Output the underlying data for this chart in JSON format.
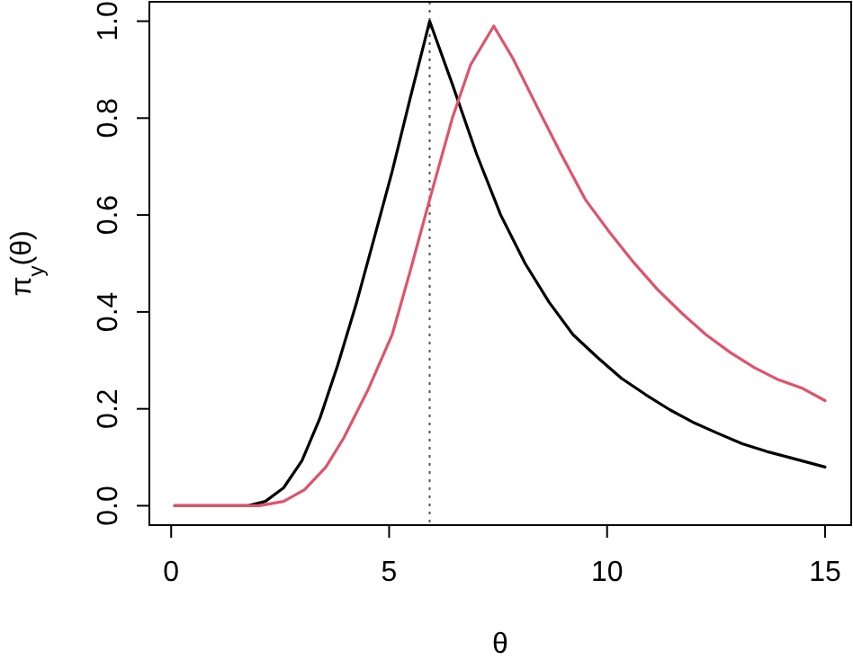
{
  "chart_data": {
    "type": "line",
    "xlabel": "θ",
    "ylabel": "π$_{y}$(θ)",
    "xlim": [
      -0.5,
      15.6
    ],
    "ylim": [
      -0.04,
      1.04
    ],
    "xticks": [
      0,
      5,
      10,
      15
    ],
    "yticks": [
      {
        "value": 0,
        "label": "0.0"
      },
      {
        "value": 0.2,
        "label": "0.2"
      },
      {
        "value": 0.4,
        "label": "0.4"
      },
      {
        "value": 0.6,
        "label": "0.6"
      },
      {
        "value": 0.8,
        "label": "0.8"
      },
      {
        "value": 1,
        "label": "1.0"
      }
    ],
    "grid": false,
    "marker": "none",
    "line_style": "solid",
    "ref_lines": [
      {
        "axis": "x",
        "value": 5.93,
        "line_style": "dotted",
        "color": "#555555"
      }
    ],
    "series": [
      {
        "color": "#000000",
        "x": [
          0.08,
          1.75,
          2.16,
          2.58,
          3.0,
          3.41,
          3.82,
          4.24,
          4.65,
          5.07,
          5.48,
          5.93,
          6.45,
          7.01,
          7.56,
          8.12,
          8.67,
          9.22,
          9.78,
          10.33,
          10.89,
          11.44,
          12.0,
          12.55,
          13.1,
          13.66,
          14.21,
          15.0
        ],
        "values": [
          0,
          0,
          0.009,
          0.037,
          0.093,
          0.18,
          0.29,
          0.415,
          0.55,
          0.69,
          0.84,
          1.0,
          0.87,
          0.725,
          0.6,
          0.5,
          0.42,
          0.353,
          0.306,
          0.263,
          0.229,
          0.198,
          0.171,
          0.149,
          0.128,
          0.112,
          0.099,
          0.08
        ]
      },
      {
        "color": "#df536b",
        "x": [
          0.08,
          2.02,
          2.58,
          3.06,
          3.55,
          3.96,
          4.52,
          5.07,
          5.48,
          5.93,
          6.45,
          6.87,
          7.4,
          7.84,
          8.39,
          8.95,
          9.5,
          10.06,
          10.61,
          11.16,
          11.72,
          12.27,
          12.83,
          13.38,
          13.93,
          14.49,
          15.0
        ],
        "values": [
          0,
          0,
          0.009,
          0.033,
          0.08,
          0.14,
          0.24,
          0.353,
          0.483,
          0.632,
          0.8,
          0.91,
          0.99,
          0.923,
          0.824,
          0.725,
          0.632,
          0.564,
          0.502,
          0.446,
          0.397,
          0.353,
          0.316,
          0.285,
          0.26,
          0.242,
          0.217
        ]
      }
    ]
  }
}
